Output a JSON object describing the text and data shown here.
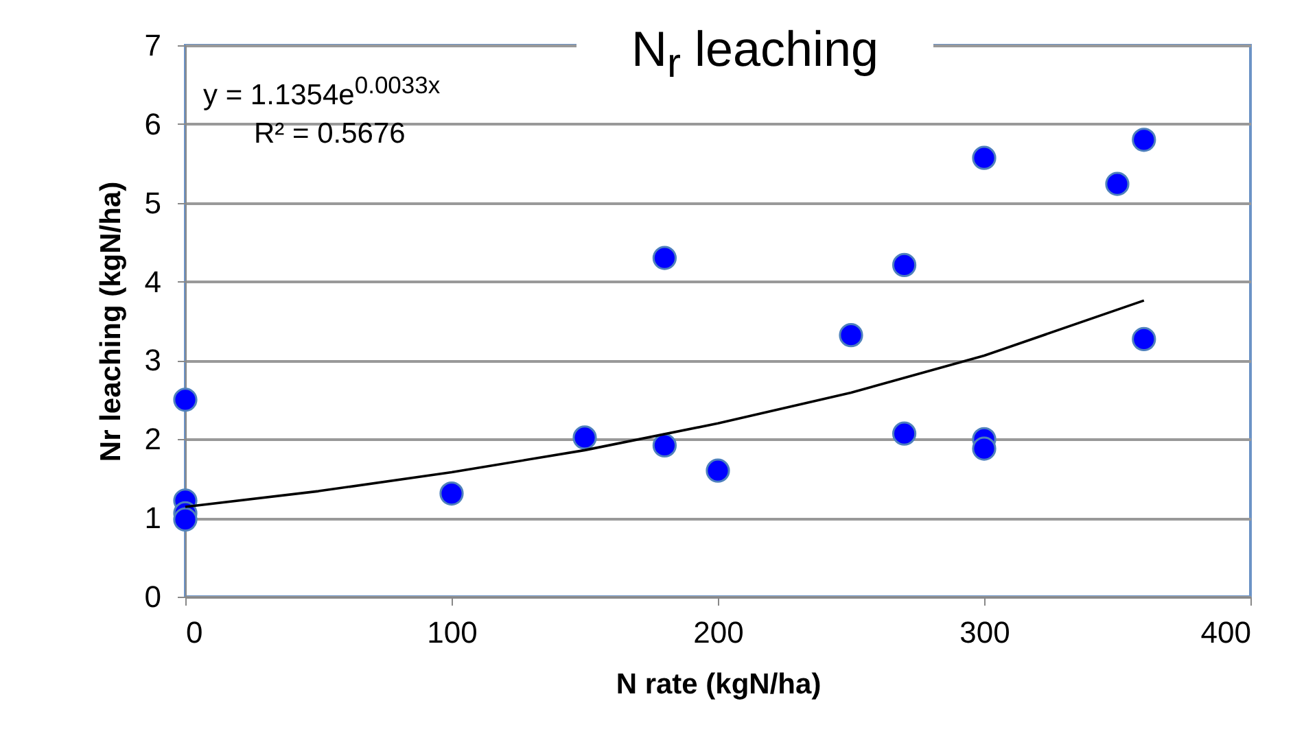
{
  "chart_data": {
    "type": "scatter",
    "title": "N$_{r}$ leaching",
    "xlabel": "N rate (kgN/ha)",
    "ylabel": "Nr leaching (kgN/ha)",
    "annotations": [
      "y = 1.1354e$^{0.0033x}$",
      "R² = 0.5676"
    ],
    "xlim": [
      0,
      400
    ],
    "xticks": [
      0,
      100,
      200,
      300,
      400
    ],
    "ylim": [
      0,
      7
    ],
    "yticks": [
      0,
      1,
      2,
      3,
      4,
      5,
      6,
      7
    ],
    "grid": "y",
    "marker": "circle",
    "series": [
      {
        "color": "#0000ff",
        "x": [
          0,
          0,
          0,
          0,
          100,
          150,
          180,
          180,
          200,
          250,
          270,
          270,
          300,
          300,
          300,
          350,
          360,
          360
        ],
        "values": [
          2.5,
          1.22,
          1.06,
          0.98,
          1.31,
          2.02,
          4.3,
          1.92,
          1.6,
          3.32,
          4.21,
          2.07,
          5.57,
          2.0,
          1.88,
          5.24,
          5.8,
          3.27
        ]
      },
      {
        "type": "line",
        "color": "#000000",
        "marker": "none",
        "x": [
          0,
          50,
          100,
          150,
          200,
          250,
          300,
          360
        ],
        "values": [
          1.14,
          1.34,
          1.58,
          1.86,
          2.2,
          2.59,
          3.06,
          3.76
        ]
      }
    ]
  }
}
